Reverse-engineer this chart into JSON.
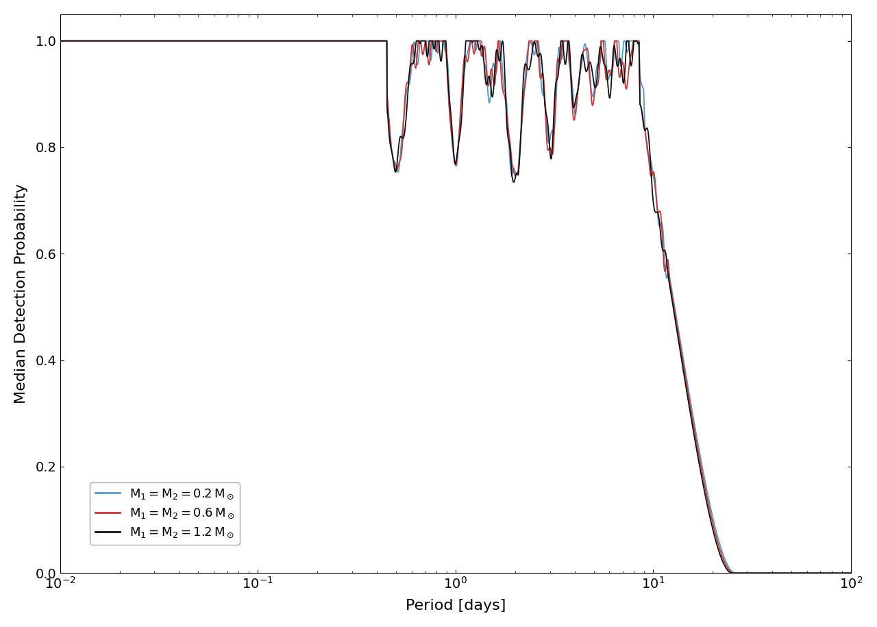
{
  "xlabel": "Period [days]",
  "ylabel": "Median Detection Probability",
  "xlim": [
    0.01,
    100
  ],
  "ylim": [
    0.0,
    1.05
  ],
  "colors": {
    "blue": "#5599cc",
    "red": "#cc3333",
    "black": "#111111"
  },
  "background_color": "#ffffff",
  "legend_labels": [
    "M$_1$ = M$_2$ = 0.2 M$_\\odot$",
    "M$_1$ = M$_2$ = 0.6 M$_\\odot$",
    "M$_1$ = M$_2$ = 1.2 M$_\\odot$"
  ]
}
